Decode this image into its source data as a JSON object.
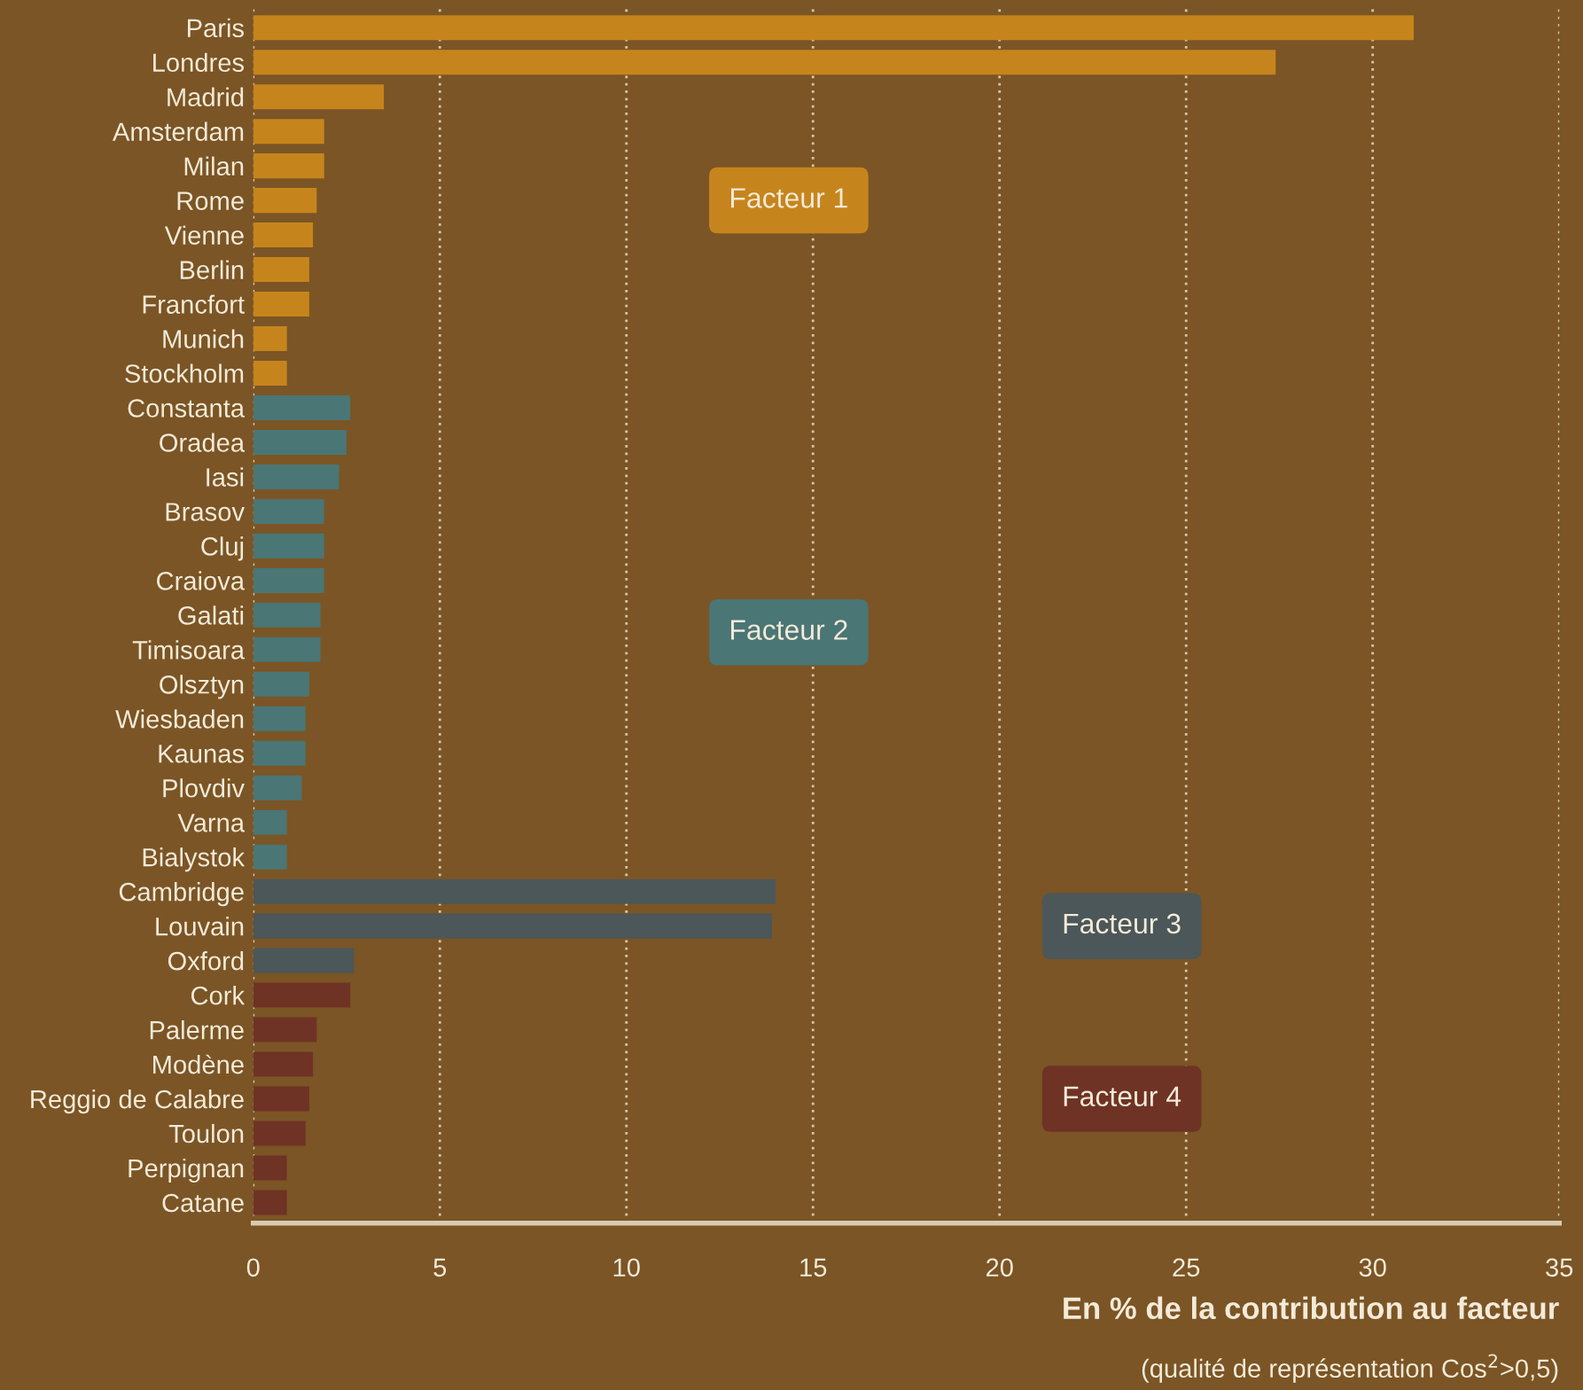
{
  "chart_data": {
    "type": "bar",
    "orientation": "horizontal",
    "xlabel": "En % de la contribution au facteur",
    "annotations": [
      "(qualité de représentation Cos$^{2}$>0,5)"
    ],
    "categories": [
      "Paris",
      "Londres",
      "Madrid",
      "Amsterdam",
      "Milan",
      "Rome",
      "Vienne",
      "Berlin",
      "Francfort",
      "Munich",
      "Stockholm",
      "Constanta",
      "Oradea",
      "Iasi",
      "Brasov",
      "Cluj",
      "Craiova",
      "Galati",
      "Timisoara",
      "Olsztyn",
      "Wiesbaden",
      "Kaunas",
      "Plovdiv",
      "Varna",
      "Bialystok",
      "Cambridge",
      "Louvain",
      "Oxford",
      "Cork",
      "Palerme",
      "Modène",
      "Reggio de Calabre",
      "Toulon",
      "Perpignan",
      "Catane"
    ],
    "series": [
      {
        "name": "Facteur 1",
        "color": "#c6851c",
        "values": [
          31.1,
          27.4,
          3.5,
          1.9,
          1.9,
          1.7,
          1.6,
          1.5,
          1.5,
          0.9,
          0.9,
          null,
          null,
          null,
          null,
          null,
          null,
          null,
          null,
          null,
          null,
          null,
          null,
          null,
          null,
          null,
          null,
          null,
          null,
          null,
          null,
          null,
          null,
          null,
          null
        ]
      },
      {
        "name": "Facteur 2",
        "color": "#4a7675",
        "values": [
          null,
          null,
          null,
          null,
          null,
          null,
          null,
          null,
          null,
          null,
          null,
          2.6,
          2.5,
          2.3,
          1.9,
          1.9,
          1.9,
          1.8,
          1.8,
          1.5,
          1.4,
          1.4,
          1.3,
          0.9,
          0.9,
          null,
          null,
          null,
          null,
          null,
          null,
          null,
          null,
          null,
          null
        ]
      },
      {
        "name": "Facteur 3",
        "color": "#4b5759",
        "values": [
          null,
          null,
          null,
          null,
          null,
          null,
          null,
          null,
          null,
          null,
          null,
          null,
          null,
          null,
          null,
          null,
          null,
          null,
          null,
          null,
          null,
          null,
          null,
          null,
          null,
          14.0,
          13.9,
          2.7,
          null,
          null,
          null,
          null,
          null,
          null,
          null
        ]
      },
      {
        "name": "Facteur 4",
        "color": "#6e3325",
        "values": [
          null,
          null,
          null,
          null,
          null,
          null,
          null,
          null,
          null,
          null,
          null,
          null,
          null,
          null,
          null,
          null,
          null,
          null,
          null,
          null,
          null,
          null,
          null,
          null,
          null,
          null,
          null,
          null,
          2.6,
          1.7,
          1.6,
          1.5,
          1.4,
          0.9,
          0.9
        ]
      }
    ],
    "xlim": [
      0,
      35
    ],
    "xticks": [
      0,
      5,
      10,
      15,
      20,
      25,
      30,
      35
    ],
    "grid": "x"
  }
}
